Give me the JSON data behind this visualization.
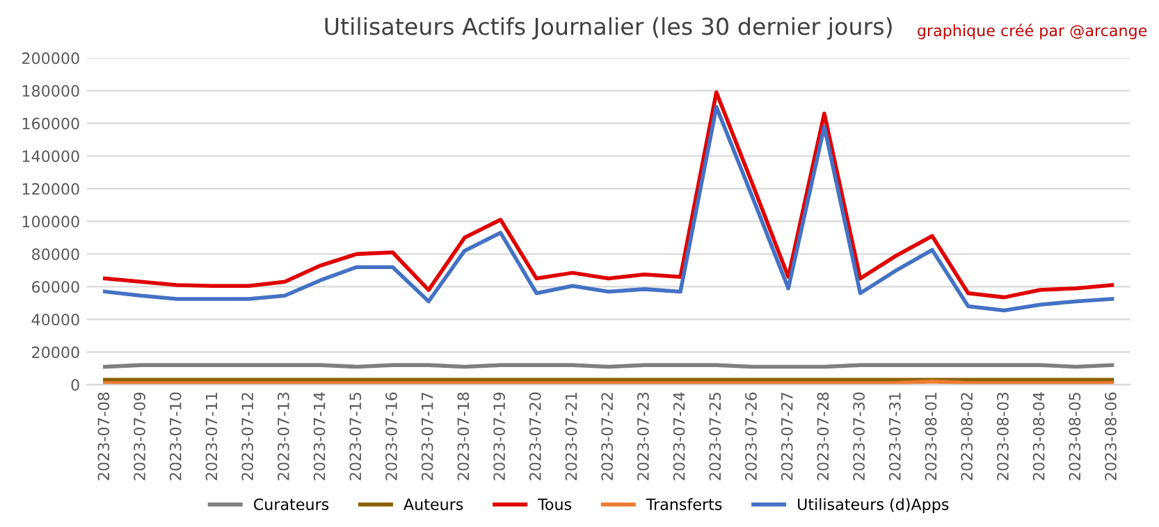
{
  "chart_data": {
    "type": "line",
    "title": "Utilisateurs Actifs Journalier (les 30 dernier jours)",
    "annotations": [
      "graphique créé par @arcange"
    ],
    "categories": [
      "2023-07-08",
      "2023-07-09",
      "2023-07-10",
      "2023-07-11",
      "2023-07-12",
      "2023-07-13",
      "2023-07-14",
      "2023-07-15",
      "2023-07-16",
      "2023-07-17",
      "2023-07-18",
      "2023-07-19",
      "2023-07-20",
      "2023-07-21",
      "2023-07-22",
      "2023-07-23",
      "2023-07-24",
      "2023-07-25",
      "2023-07-26",
      "2023-07-27",
      "2023-07-28",
      "2023-07-30",
      "2023-07-31",
      "2023-08-01",
      "2023-08-02",
      "2023-08-03",
      "2023-08-04",
      "2023-08-05",
      "2023-08-06"
    ],
    "ylim": [
      0,
      200000
    ],
    "yticks": [
      0,
      20000,
      40000,
      60000,
      80000,
      100000,
      120000,
      140000,
      160000,
      180000,
      200000
    ],
    "grid": "y",
    "legend": "bottom",
    "marker": "none",
    "line_style": "solid",
    "series": [
      {
        "name": "Curateurs",
        "color": "#7f7f7f",
        "values": [
          11000,
          12000,
          12000,
          12000,
          12000,
          12000,
          12000,
          11000,
          12000,
          12000,
          11000,
          12000,
          12000,
          12000,
          11000,
          12000,
          12000,
          12000,
          11000,
          11000,
          11000,
          12000,
          12000,
          12000,
          12000,
          12000,
          12000,
          11000,
          12000
        ]
      },
      {
        "name": "Auteurs",
        "color": "#8c6000",
        "values": [
          3000,
          3000,
          3000,
          3000,
          3000,
          3000,
          3000,
          3000,
          3000,
          3000,
          3000,
          3000,
          3000,
          3000,
          3000,
          3000,
          3000,
          3000,
          3000,
          3000,
          3000,
          3000,
          3000,
          3000,
          3000,
          3000,
          3000,
          3000,
          3000
        ]
      },
      {
        "name": "Tous",
        "color": "#e00000",
        "values": [
          65000,
          63000,
          61000,
          60500,
          60500,
          63000,
          73000,
          80000,
          81000,
          58000,
          90000,
          101000,
          65000,
          68500,
          65000,
          67500,
          66000,
          179000,
          123000,
          66000,
          166000,
          65000,
          79000,
          91000,
          56000,
          53500,
          58000,
          59000,
          61000
        ]
      },
      {
        "name": "Transferts",
        "color": "#ed7d31",
        "values": [
          1000,
          1000,
          1000,
          1000,
          1000,
          1000,
          1000,
          1000,
          1000,
          1000,
          1000,
          1000,
          1000,
          1000,
          1000,
          1000,
          1000,
          1000,
          1000,
          1000,
          1000,
          1000,
          1000,
          2000,
          1000,
          1000,
          1000,
          1000,
          1000
        ]
      },
      {
        "name": "Utilisateurs (d)Apps",
        "color": "#4472c4",
        "values": [
          57000,
          54500,
          52500,
          52500,
          52500,
          54500,
          64000,
          72000,
          72000,
          51000,
          82000,
          93000,
          56000,
          60500,
          57000,
          58500,
          57000,
          170000,
          115000,
          59000,
          158000,
          56000,
          70000,
          82500,
          48000,
          45500,
          49000,
          51000,
          52500
        ]
      }
    ]
  }
}
